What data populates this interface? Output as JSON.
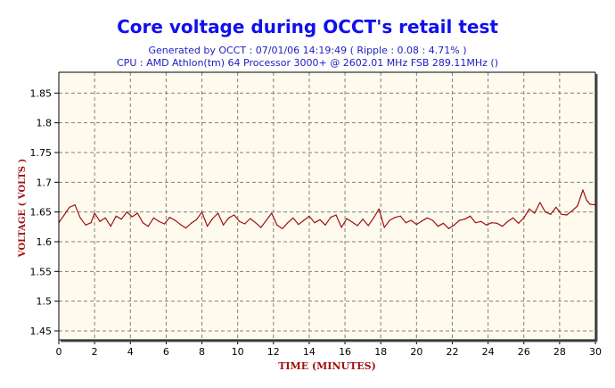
{
  "title": "Core voltage during OCCT's retail test",
  "subtitle_1": "Generated by OCCT : 07/01/06 14:19:49 ( Ripple : 0.08 : 4.71% )",
  "subtitle_2": "CPU : AMD Athlon(tm) 64 Processor 3000+ @ 2602.01 MHz FSB 289.11MHz ()",
  "colors": {
    "title": "#1010ee",
    "subtitle": "#2020c0",
    "axis_label": "#a01010",
    "line": "#a01010",
    "plot_bg": "#fffaee",
    "grid": "#808080"
  },
  "chart_data": {
    "type": "line",
    "xlabel": "TIME (MINUTES)",
    "ylabel": "VOLTAGE ( VOLTS )",
    "xlim": [
      0,
      30
    ],
    "ylim": [
      1.435,
      1.885
    ],
    "x_ticks": [
      0,
      2,
      4,
      6,
      8,
      10,
      12,
      14,
      16,
      18,
      20,
      22,
      24,
      26,
      28,
      30
    ],
    "y_ticks": [
      1.45,
      1.5,
      1.55,
      1.6,
      1.65,
      1.7,
      1.75,
      1.8,
      1.85
    ],
    "y_tick_labels": [
      "1.45",
      "1.5",
      "1.55",
      "1.6",
      "1.65",
      "1.7",
      "1.75",
      "1.8",
      "1.85"
    ],
    "grid": true,
    "series": [
      {
        "x": [
          0,
          0.3,
          0.6,
          0.9,
          1.2,
          1.5,
          1.8,
          2.0,
          2.3,
          2.6,
          2.9,
          3.2,
          3.5,
          3.8,
          4.1,
          4.4,
          4.7,
          5.0,
          5.3,
          5.6,
          5.9,
          6.2,
          6.5,
          6.8,
          7.1,
          7.4,
          7.7,
          8.0,
          8.3,
          8.6,
          8.9,
          9.2,
          9.5,
          9.8,
          10.1,
          10.4,
          10.7,
          11.0,
          11.3,
          11.6,
          11.9,
          12.2,
          12.5,
          12.8,
          13.1,
          13.4,
          13.7,
          14.0,
          14.3,
          14.6,
          14.9,
          15.2,
          15.5,
          15.8,
          16.1,
          16.4,
          16.7,
          17.0,
          17.3,
          17.6,
          17.9,
          18.2,
          18.5,
          18.8,
          19.1,
          19.4,
          19.7,
          20.0,
          20.3,
          20.6,
          20.9,
          21.2,
          21.5,
          21.8,
          22.1,
          22.4,
          22.7,
          23.0,
          23.3,
          23.6,
          23.9,
          24.2,
          24.5,
          24.8,
          25.1,
          25.4,
          25.7,
          26.0,
          26.3,
          26.6,
          26.9,
          27.2,
          27.5,
          27.8,
          28.1,
          28.4,
          28.7,
          29.0,
          29.3,
          29.5,
          29.7,
          30.0
        ],
        "values": [
          1.632,
          1.645,
          1.658,
          1.662,
          1.64,
          1.628,
          1.632,
          1.648,
          1.634,
          1.64,
          1.626,
          1.643,
          1.638,
          1.65,
          1.642,
          1.648,
          1.632,
          1.626,
          1.64,
          1.634,
          1.63,
          1.641,
          1.636,
          1.629,
          1.623,
          1.631,
          1.637,
          1.65,
          1.626,
          1.639,
          1.648,
          1.628,
          1.64,
          1.645,
          1.634,
          1.63,
          1.639,
          1.632,
          1.624,
          1.636,
          1.648,
          1.628,
          1.622,
          1.632,
          1.64,
          1.629,
          1.636,
          1.643,
          1.632,
          1.637,
          1.628,
          1.641,
          1.645,
          1.624,
          1.639,
          1.633,
          1.627,
          1.638,
          1.627,
          1.64,
          1.655,
          1.624,
          1.636,
          1.641,
          1.643,
          1.632,
          1.636,
          1.629,
          1.635,
          1.64,
          1.636,
          1.626,
          1.631,
          1.622,
          1.628,
          1.636,
          1.638,
          1.643,
          1.632,
          1.634,
          1.628,
          1.632,
          1.631,
          1.626,
          1.634,
          1.64,
          1.631,
          1.64,
          1.655,
          1.648,
          1.666,
          1.65,
          1.646,
          1.658,
          1.646,
          1.645,
          1.652,
          1.66,
          1.687,
          1.67,
          1.663,
          1.662
        ]
      }
    ]
  }
}
